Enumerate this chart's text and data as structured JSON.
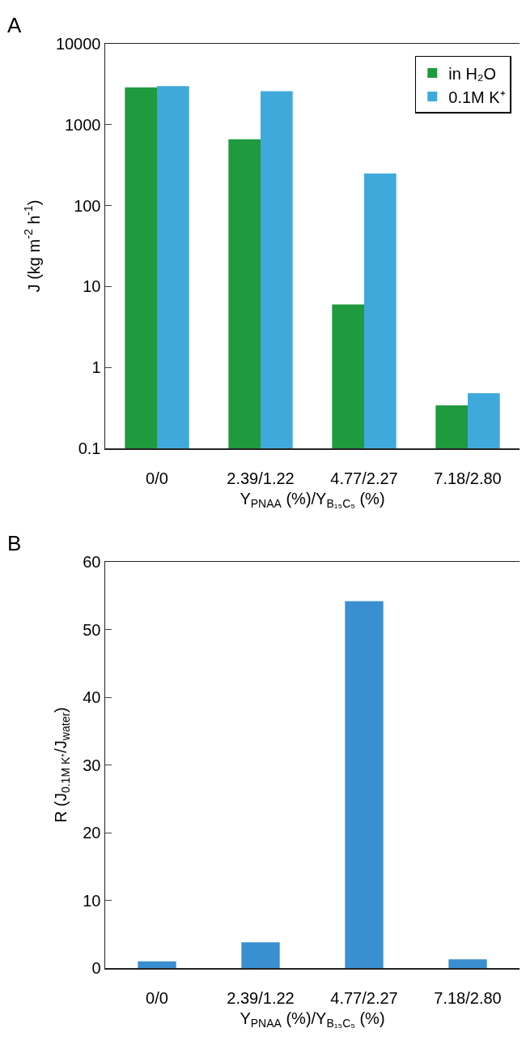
{
  "chart_data": [
    {
      "type": "bar",
      "annotations": [
        "A"
      ],
      "xlabel": "Y$_{PNAA}$ (%)/Y$_{B₁₅C₅}$ (%)",
      "ylabel": "J (kg m$^{-2}$ h$^{-1}$)",
      "categories": [
        "0/0",
        "2.39/1.22",
        "4.77/2.27",
        "7.18/2.80"
      ],
      "series": [
        {
          "name": "in H₂O",
          "color": "#1f9a3e",
          "values": [
            2900,
            660,
            6,
            0.34
          ]
        },
        {
          "name": "0.1M K⁺",
          "color": "#3fa9dc",
          "values": [
            3000,
            2600,
            250,
            0.48
          ]
        }
      ],
      "log": true,
      "ylim": [
        0.1,
        10000
      ],
      "yticks": [
        0.1,
        1,
        10,
        100,
        1000,
        10000
      ],
      "grid": false,
      "legend": "top right"
    },
    {
      "type": "bar",
      "annotations": [
        "B"
      ],
      "xlabel": "Y$_{PNAA}$ (%)/Y$_{B₁₅C₅}$ (%)",
      "ylabel": "R (J$_{0.1M K⁺}$/J$_{water}$)",
      "categories": [
        "0/0",
        "2.39/1.22",
        "4.77/2.27",
        "7.18/2.80"
      ],
      "values": [
        1.0,
        3.8,
        54.2,
        1.3
      ],
      "color": "#3a8fd0",
      "ylim": [
        0,
        60
      ],
      "yticks": [
        0,
        10,
        20,
        30,
        40,
        50,
        60
      ],
      "grid": false,
      "legend": false
    }
  ]
}
